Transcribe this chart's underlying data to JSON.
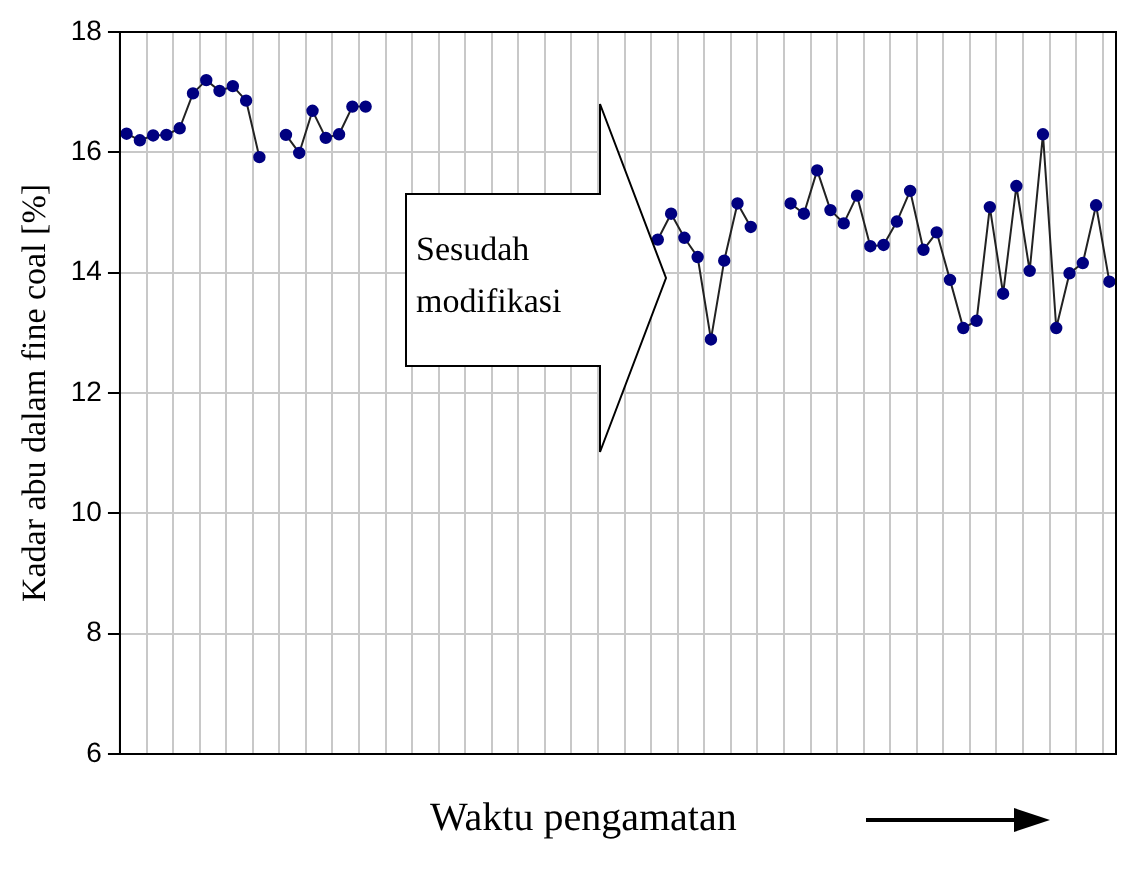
{
  "chart_data": {
    "type": "line",
    "xlabel": "Waktu pengamatan",
    "ylabel": "Kadar abu dalam fine coal [%]",
    "annotations": [
      "Sesudah modifikasi"
    ],
    "categories": [
      null,
      null,
      null,
      null,
      null,
      null,
      null,
      null,
      null,
      null,
      null,
      null,
      null,
      null,
      null,
      null,
      null,
      null,
      null,
      null,
      null,
      null,
      null,
      null,
      null,
      null,
      null,
      null,
      null,
      null,
      null,
      null,
      null,
      null,
      null,
      null,
      null,
      null,
      null,
      null,
      null,
      null,
      null,
      null,
      null,
      null,
      null,
      null,
      null,
      null,
      null,
      null,
      null,
      null,
      null,
      null,
      null,
      null,
      null,
      null,
      null,
      null,
      null,
      null,
      null,
      null,
      null,
      null,
      null,
      null,
      null,
      null,
      null,
      null,
      null
    ],
    "series": [
      {
        "color": "#000080",
        "values": [
          16.31,
          16.2,
          16.28,
          16.29,
          16.4,
          16.98,
          17.2,
          17.02,
          17.1,
          16.86,
          15.92,
          null,
          16.29,
          15.99,
          16.69,
          16.24,
          16.3,
          16.76,
          16.76,
          null,
          null,
          null,
          null,
          null,
          null,
          null,
          null,
          null,
          null,
          null,
          null,
          null,
          null,
          null,
          null,
          null,
          null,
          null,
          null,
          null,
          14.55,
          14.98,
          14.58,
          14.26,
          12.89,
          14.2,
          15.15,
          14.76,
          null,
          null,
          15.15,
          14.98,
          15.7,
          15.04,
          14.82,
          15.28,
          14.44,
          14.46,
          14.85,
          15.36,
          14.38,
          14.67,
          13.88,
          13.08,
          13.2,
          15.09,
          13.65,
          15.44,
          14.03,
          16.3,
          13.08,
          13.99,
          14.16,
          15.12,
          13.85
        ]
      }
    ],
    "ylim": [
      6,
      18
    ],
    "yticks": [
      6,
      8,
      10,
      12,
      14,
      16,
      18
    ],
    "grid": true,
    "legend": false,
    "marker": "circle",
    "line_style": "solid",
    "tick_labels": "y"
  }
}
